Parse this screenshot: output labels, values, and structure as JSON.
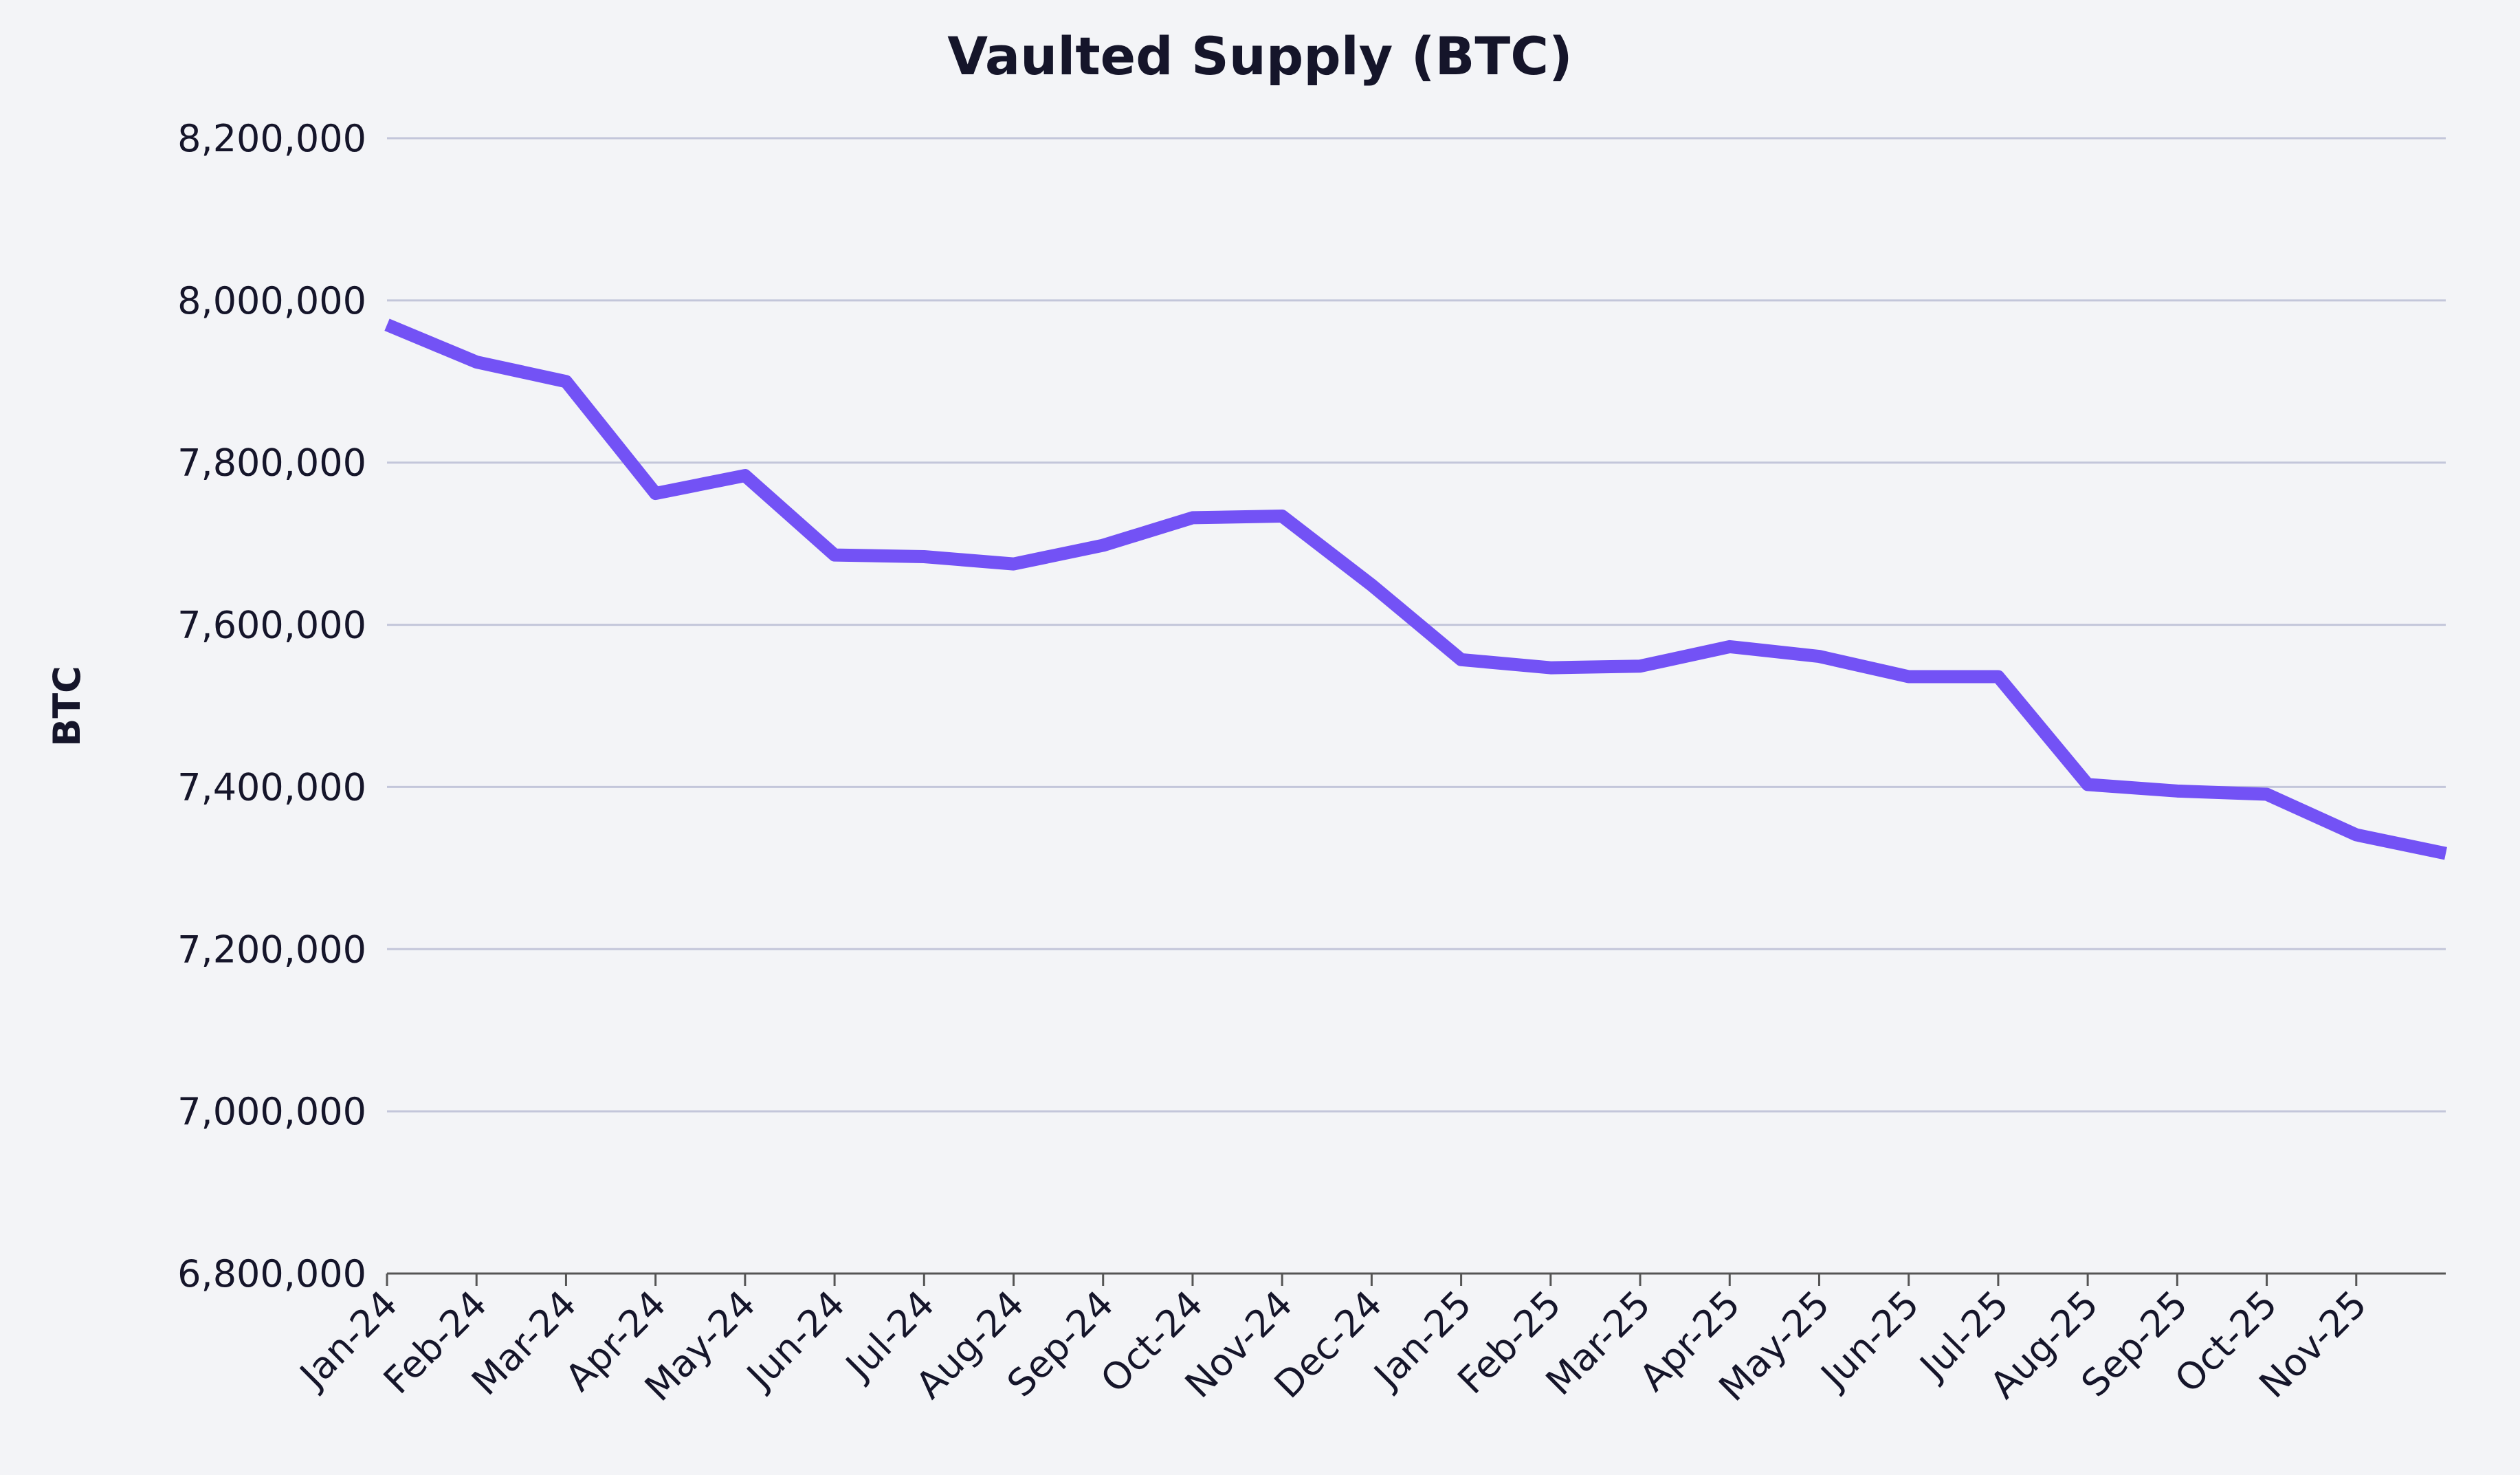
{
  "chart_data": {
    "type": "line",
    "title": "Vaulted Supply (BTC)",
    "y_label": "BTC",
    "categories": [
      "Jan-24",
      "Feb-24",
      "Mar-24",
      "Apr-24",
      "May-24",
      "Jun-24",
      "Jul-24",
      "Aug-24",
      "Sep-24",
      "Oct-24",
      "Nov-24",
      "Dec-24",
      "Jan-25",
      "Feb-25",
      "Mar-25",
      "Apr-25",
      "May-25",
      "Jun-25",
      "Jul-25",
      "Aug-25",
      "Sep-25",
      "Oct-25",
      "Nov-25",
      null
    ],
    "series": [
      {
        "name": "Vaulted Supply",
        "color": "#7352f5",
        "values": [
          7970000,
          7924000,
          7900000,
          7762000,
          7784000,
          7686000,
          7684000,
          7675000,
          7698000,
          7732000,
          7734000,
          7649000,
          7557000,
          7547000,
          7549000,
          7573000,
          7561000,
          7536000,
          7536000,
          7403000,
          7395000,
          7391000,
          7341000,
          7318000
        ]
      }
    ],
    "ylim": [
      6800000,
      8200000
    ],
    "yticks": [
      {
        "value": 6800000,
        "label": "6,800,000"
      },
      {
        "value": 7000000,
        "label": "7,000,000"
      },
      {
        "value": 7200000,
        "label": "7,200,000"
      },
      {
        "value": 7400000,
        "label": "7,400,000"
      },
      {
        "value": 7600000,
        "label": "7,600,000"
      },
      {
        "value": 7800000,
        "label": "7,800,000"
      },
      {
        "value": 8000000,
        "label": "8,000,000"
      },
      {
        "value": 8200000,
        "label": "8,200,000"
      }
    ],
    "grid": true
  }
}
